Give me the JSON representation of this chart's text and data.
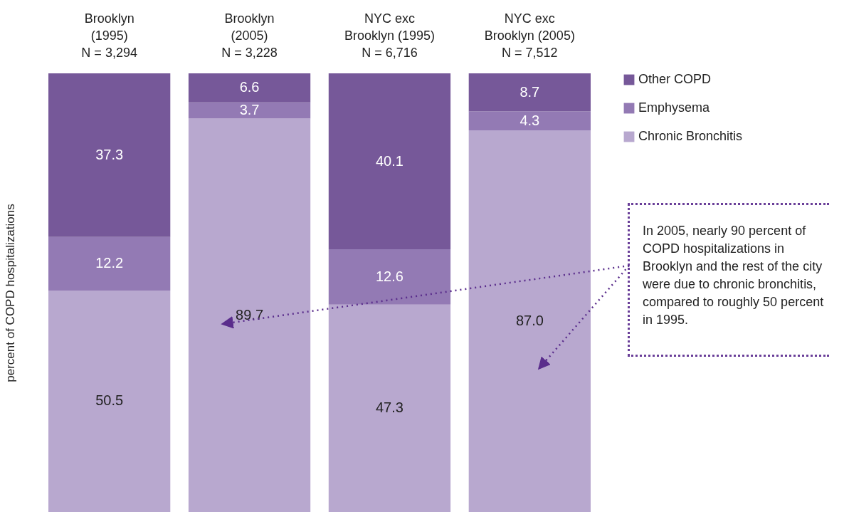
{
  "chart_data": {
    "type": "bar",
    "stacked": true,
    "ylabel": "percent of COPD hospitalizations",
    "categories": [
      "Brooklyn\n(1995)\nN = 3,294",
      "Brooklyn\n(2005)\nN = 3,228",
      "NYC exc\nBrooklyn (1995)\nN = 6,716",
      "NYC exc\nBrooklyn (2005)\nN = 7,512"
    ],
    "series": [
      {
        "name": "Chronic Bronchitis",
        "color": "#b8a8cf",
        "values": [
          50.5,
          89.7,
          47.3,
          87.0
        ],
        "value_labels": [
          "50.5",
          "89.7",
          "47.3",
          "87.0"
        ]
      },
      {
        "name": "Emphysema",
        "color": "#937ab4",
        "values": [
          12.2,
          3.7,
          12.6,
          4.3
        ],
        "value_labels": [
          "12.2",
          "3.7",
          "12.6",
          "4.3"
        ]
      },
      {
        "name": "Other COPD",
        "color": "#765899",
        "values": [
          37.3,
          6.6,
          40.1,
          8.7
        ],
        "value_labels": [
          "37.3",
          "6.6",
          "40.1",
          "8.7"
        ]
      }
    ],
    "ylim": [
      0,
      100
    ],
    "tick_labels": "x",
    "legend": "top right",
    "annotations": [
      "In 2005, nearly 90 percent of COPD hospitalizations in Brooklyn and the rest of the city were due to chronic bronchitis, compared to roughly 50 percent in 1995."
    ]
  }
}
